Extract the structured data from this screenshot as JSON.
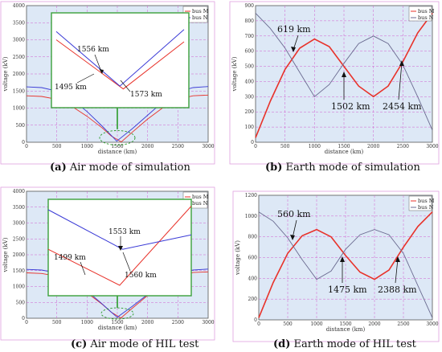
{
  "chart_data": [
    {
      "type": "line",
      "caption_tag": "(a)",
      "caption_text": " Air mode of simulation",
      "xlabel": "distance (km)",
      "ylabel": "voltage (kV)",
      "xlim": [
        0,
        3000
      ],
      "ylim": [
        0,
        4000
      ],
      "xticks": [
        0,
        500,
        1000,
        1500,
        2000,
        2500,
        3000
      ],
      "yticks": [
        0,
        500,
        1000,
        1500,
        2000,
        2500,
        3000,
        3500,
        4000
      ],
      "grid": true,
      "legend": "top-right",
      "series": [
        {
          "name": "bus M",
          "color": "#e8322a",
          "x": [
            0,
            250,
            500,
            750,
            1000,
            1250,
            1400,
            1565,
            1750,
            2000,
            2250,
            2500,
            2750,
            3000
          ],
          "values": [
            1360,
            1340,
            1260,
            1050,
            760,
            420,
            180,
            10,
            300,
            680,
            1010,
            1260,
            1360,
            1380
          ]
        },
        {
          "name": "bus N",
          "color": "#3a3ad6",
          "x": [
            0,
            250,
            500,
            750,
            1000,
            1250,
            1400,
            1490,
            1750,
            2000,
            2250,
            2500,
            2750,
            3000
          ],
          "values": [
            1620,
            1600,
            1500,
            1260,
            900,
            470,
            200,
            30,
            400,
            790,
            1180,
            1470,
            1600,
            1630
          ]
        }
      ],
      "inset": {
        "series": [
          {
            "name": "bus M",
            "x": [
              0,
              1573,
              3000
            ],
            "values": [
              3000,
              1800,
              2950
            ]
          },
          {
            "name": "bus N",
            "x": [
              0,
              1495,
              3000
            ],
            "values": [
              3200,
              1870,
              3250
            ]
          }
        ],
        "annotations": [
          "1556 km",
          "1495 km",
          "1573 km"
        ]
      }
    },
    {
      "type": "line",
      "caption_tag": "(b)",
      "caption_text": " Earth mode of simulation",
      "xlabel": "distance (km)",
      "ylabel": "voltage (kV)",
      "xlim": [
        0,
        3000
      ],
      "ylim": [
        0,
        900
      ],
      "xticks": [
        0,
        500,
        1000,
        1500,
        2000,
        2500,
        3000
      ],
      "yticks": [
        0,
        100,
        200,
        300,
        400,
        500,
        600,
        700,
        800,
        900
      ],
      "grid": true,
      "legend": "top-right",
      "series": [
        {
          "name": "bus M",
          "color": "#e8322a",
          "x": [
            0,
            250,
            500,
            750,
            1000,
            1250,
            1500,
            1750,
            2000,
            2250,
            2500,
            2750,
            3000
          ],
          "values": [
            30,
            270,
            480,
            620,
            680,
            630,
            500,
            370,
            300,
            370,
            530,
            720,
            850
          ]
        },
        {
          "name": "bus N",
          "color": "#6a6a90",
          "x": [
            0,
            250,
            500,
            750,
            1000,
            1250,
            1500,
            1750,
            2000,
            2250,
            2500,
            2750,
            3000
          ],
          "values": [
            850,
            750,
            620,
            460,
            300,
            380,
            520,
            650,
            700,
            650,
            510,
            300,
            80
          ]
        }
      ],
      "annotations": [
        "619 km",
        "1502 km",
        "2454 km"
      ]
    },
    {
      "type": "line",
      "caption_tag": "(c)",
      "caption_text": " Air mode of HIL test",
      "xlabel": "distance (km)",
      "ylabel": "voltage (kV)",
      "xlim": [
        0,
        3000
      ],
      "ylim": [
        0,
        4000
      ],
      "xticks": [
        0,
        500,
        1000,
        1500,
        2000,
        2500,
        3000
      ],
      "yticks": [
        0,
        500,
        1000,
        1500,
        2000,
        2500,
        3000,
        3500,
        4000
      ],
      "grid": true,
      "legend": "top-right",
      "series": [
        {
          "name": "bus M",
          "color": "#e8322a",
          "x": [
            0,
            250,
            500,
            750,
            1000,
            1250,
            1400,
            1560,
            1750,
            2000,
            2250,
            2500,
            2750,
            3000
          ],
          "values": [
            1430,
            1410,
            1330,
            1110,
            800,
            440,
            190,
            10,
            320,
            720,
            1070,
            1330,
            1440,
            1460
          ]
        },
        {
          "name": "bus N",
          "color": "#3a3ad6",
          "x": [
            0,
            250,
            500,
            750,
            1000,
            1250,
            1400,
            1499,
            1750,
            2000,
            2250,
            2500,
            2750,
            3000
          ],
          "values": [
            1540,
            1520,
            1430,
            1200,
            860,
            450,
            190,
            30,
            380,
            750,
            1120,
            1400,
            1520,
            1550
          ]
        }
      ],
      "inset": {
        "series": [
          {
            "name": "bus M",
            "x": [
              0,
              1499,
              3000
            ],
            "values": [
              2200,
              1200,
              3400
            ]
          },
          {
            "name": "bus N",
            "x": [
              0,
              1560,
              3000
            ],
            "values": [
              3300,
              2200,
              2600
            ]
          }
        ],
        "annotations": [
          "1553 km",
          "1499 km",
          "1560 km"
        ]
      }
    },
    {
      "type": "line",
      "caption_tag": "(d)",
      "caption_text": " Earth mode of HIL test",
      "xlabel": "distance (km)",
      "ylabel": "voltage (kV)",
      "xlim": [
        0,
        3000
      ],
      "ylim": [
        0,
        1200
      ],
      "xticks": [
        0,
        500,
        1000,
        1500,
        2000,
        2500,
        3000
      ],
      "yticks": [
        0,
        200,
        400,
        600,
        800,
        1000,
        1200
      ],
      "grid": true,
      "legend": "top-right",
      "series": [
        {
          "name": "bus M",
          "color": "#e8322a",
          "x": [
            0,
            250,
            500,
            750,
            1000,
            1250,
            1500,
            1750,
            2000,
            2250,
            2500,
            2750,
            3000
          ],
          "values": [
            20,
            360,
            640,
            810,
            870,
            800,
            620,
            460,
            390,
            480,
            700,
            900,
            1040
          ]
        },
        {
          "name": "bus N",
          "color": "#6a6a90",
          "x": [
            0,
            250,
            500,
            750,
            1000,
            1250,
            1500,
            1750,
            2000,
            2250,
            2500,
            2750,
            3000
          ],
          "values": [
            1040,
            950,
            790,
            580,
            390,
            470,
            680,
            820,
            870,
            820,
            640,
            330,
            20
          ]
        }
      ],
      "annotations": [
        "560 km",
        "1475 km",
        "2388 km"
      ]
    }
  ]
}
